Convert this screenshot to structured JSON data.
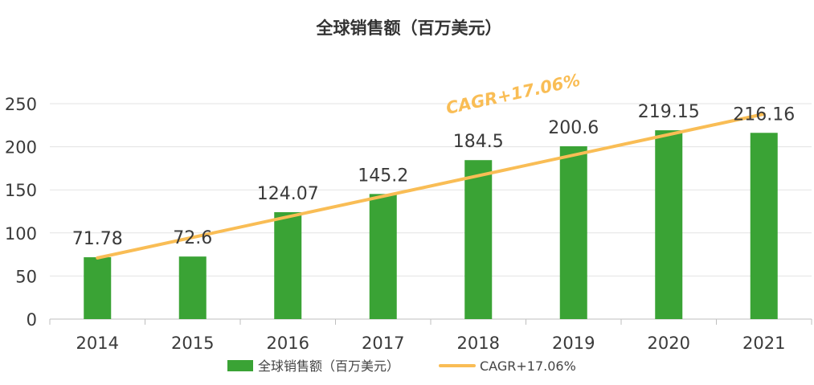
{
  "chart_data": {
    "type": "bar",
    "title": "全球销售额（百万美元）",
    "categories": [
      "2014",
      "2015",
      "2016",
      "2017",
      "2018",
      "2019",
      "2020",
      "2021"
    ],
    "series": [
      {
        "name": "全球销售额（百万美元）",
        "values": [
          71.78,
          72.6,
          124.07,
          145.2,
          184.5,
          200.6,
          219.15,
          216.16
        ],
        "value_labels": [
          "71.78",
          "72.6",
          "124.07",
          "145.2",
          "184.5",
          "200.6",
          "219.15",
          "216.16"
        ],
        "color": "#3aa335"
      }
    ],
    "trendline": {
      "name": "CAGR+17.06%",
      "label": "CAGR+17.06%",
      "start_value": 71,
      "end_value": 238,
      "color": "#f9bd55"
    },
    "ylim": [
      0,
      250
    ],
    "yticks": [
      0,
      50,
      100,
      150,
      200,
      250
    ],
    "xlabel": "",
    "ylabel": "",
    "grid": true,
    "legend_position": "bottom"
  }
}
